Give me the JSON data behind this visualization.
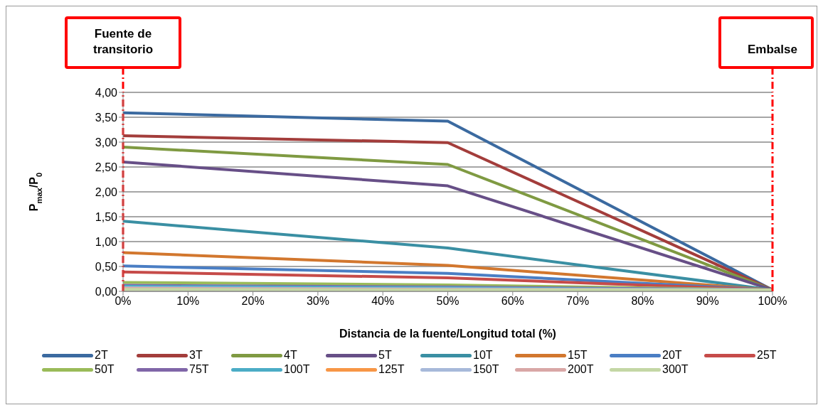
{
  "chart_data": {
    "type": "line",
    "xlabel": "Distancia de la fuente/Longitud total (%)",
    "ylabel": "P$_{max}$/P$_{0}$",
    "x": [
      0,
      50,
      100
    ],
    "series": [
      {
        "name": "2T",
        "color": "#3b6aa0",
        "values": [
          3.59,
          3.42,
          0.03
        ]
      },
      {
        "name": "3T",
        "color": "#a33d3b",
        "values": [
          3.13,
          2.99,
          0.03
        ]
      },
      {
        "name": "4T",
        "color": "#7f9a42",
        "values": [
          2.9,
          2.55,
          0.03
        ]
      },
      {
        "name": "5T",
        "color": "#674f87",
        "values": [
          2.6,
          2.12,
          0.03
        ]
      },
      {
        "name": "10T",
        "color": "#3a8fa3",
        "values": [
          1.41,
          0.87,
          0.03
        ]
      },
      {
        "name": "15T",
        "color": "#d2772e",
        "values": [
          0.78,
          0.52,
          0.03
        ]
      },
      {
        "name": "20T",
        "color": "#4a7ec4",
        "values": [
          0.51,
          0.36,
          0.03
        ]
      },
      {
        "name": "25T",
        "color": "#c64b49",
        "values": [
          0.39,
          0.27,
          0.03
        ]
      },
      {
        "name": "50T",
        "color": "#9abb59",
        "values": [
          0.18,
          0.13,
          0.03
        ]
      },
      {
        "name": "75T",
        "color": "#8066a8",
        "values": [
          0.12,
          0.09,
          0.03
        ]
      },
      {
        "name": "100T",
        "color": "#4bacc6",
        "values": [
          0.1,
          0.07,
          0.03
        ]
      },
      {
        "name": "125T",
        "color": "#f79646",
        "values": [
          null,
          null,
          null
        ]
      },
      {
        "name": "150T",
        "color": "#a7b9da",
        "values": [
          0.07,
          0.05,
          0.03
        ]
      },
      {
        "name": "200T",
        "color": "#d9a7a6",
        "values": [
          0.06,
          0.04,
          0.03
        ]
      },
      {
        "name": "300T",
        "color": "#c4d7a5",
        "values": [
          0.04,
          0.03,
          0.03
        ]
      }
    ],
    "xlim": [
      0,
      100
    ],
    "xticks": [
      {
        "value": 0,
        "label": "0%"
      },
      {
        "value": 10,
        "label": "10%"
      },
      {
        "value": 20,
        "label": "20%"
      },
      {
        "value": 30,
        "label": "30%"
      },
      {
        "value": 40,
        "label": "40%"
      },
      {
        "value": 50,
        "label": "50%"
      },
      {
        "value": 60,
        "label": "60%"
      },
      {
        "value": 70,
        "label": "70%"
      },
      {
        "value": 80,
        "label": "80%"
      },
      {
        "value": 90,
        "label": "90%"
      },
      {
        "value": 100,
        "label": "100%"
      }
    ],
    "ylim": [
      0,
      4
    ],
    "yticks": [
      {
        "value": 0,
        "label": "0,00"
      },
      {
        "value": 0.5,
        "label": "0,50"
      },
      {
        "value": 1,
        "label": "1,00"
      },
      {
        "value": 1.5,
        "label": "1,50"
      },
      {
        "value": 2,
        "label": "2,00"
      },
      {
        "value": 2.5,
        "label": "2,50"
      },
      {
        "value": 3,
        "label": "3,00"
      },
      {
        "value": 3.5,
        "label": "3,50"
      },
      {
        "value": 4,
        "label": "4,00"
      }
    ],
    "ref_lines": [
      {
        "axis": "x",
        "value": 0,
        "label": "Fuente de transitorio",
        "color": "#ff0000",
        "line_style": "dashdot"
      },
      {
        "axis": "x",
        "value": 100,
        "label": "Embalse",
        "color": "#ff0000",
        "line_style": "dashdot"
      }
    ],
    "grid": "y",
    "legend": "bottom",
    "marker": "none",
    "line_style": "solid"
  }
}
